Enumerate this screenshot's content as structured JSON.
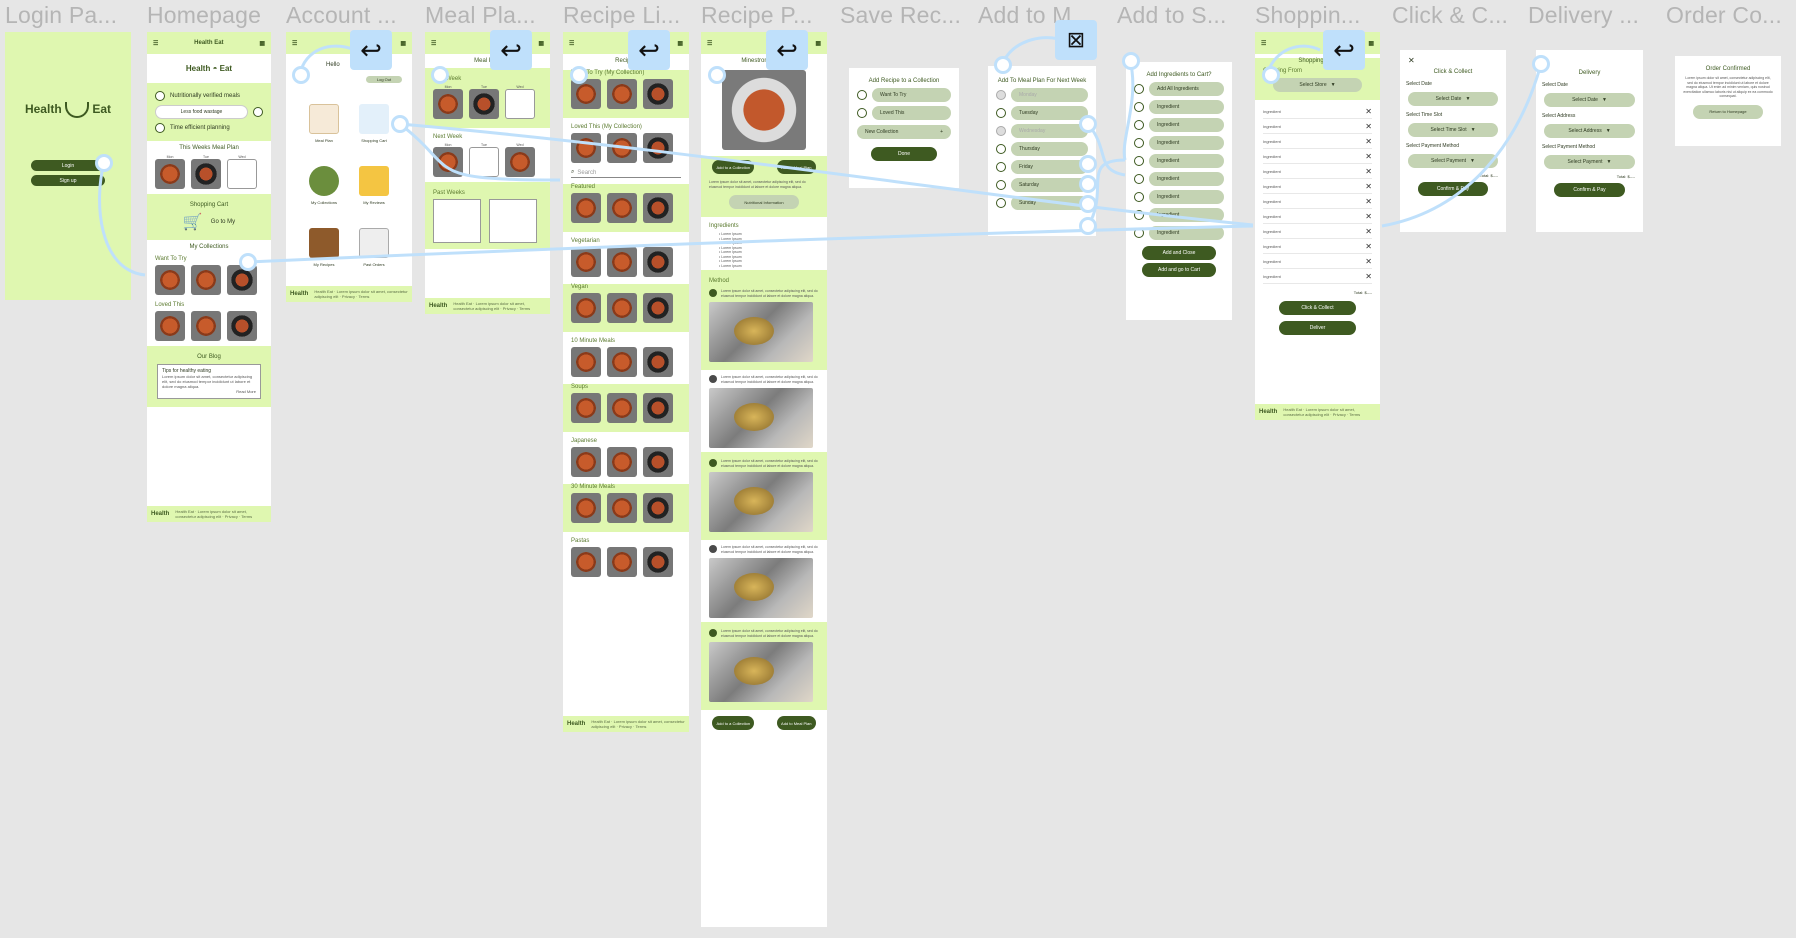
{
  "frame_titles": [
    "Login Pa...",
    "Homepage",
    "Account ...",
    "Meal Pla...",
    "Recipe Li...",
    "Recipe P...",
    "Save Rec...",
    "Add to M...",
    "Add to S...",
    "Shoppin...",
    "Click & C...",
    "Delivery ...",
    "Order Co..."
  ],
  "brand": {
    "name_left": "Health",
    "name_right": "Eat",
    "accent": "#dff7b0",
    "dark": "#3e5a21",
    "pill": "#c4d3b3",
    "flow": "#bfe0fb"
  },
  "login": {
    "login_label": "Login",
    "signup_label": "Sign up"
  },
  "home": {
    "features": [
      "Nutritionally verified meals",
      "Less food wastage",
      "Time efficient planning"
    ],
    "meal_plan_title": "This Weeks Meal Plan",
    "days": [
      "Mon",
      "Tue",
      "Wed"
    ],
    "cart_title": "Shopping Cart",
    "cart_go": "Go to My",
    "collections_title": "My Collections",
    "want_to_try": "Want To Try",
    "loved_this": "Loved This",
    "blog_title": "Our Blog",
    "blog_card_title": "Tips for healthy eating",
    "blog_read_more": "Read More"
  },
  "account": {
    "hello": "Hello",
    "log_out": "Log Out",
    "tiles": [
      "Meal Plan",
      "Shopping Cart",
      "My Collections",
      "My Reviews",
      "My Recipes",
      "Past Orders"
    ]
  },
  "meal_plan": {
    "title": "Meal Plan",
    "this_week": "This Week",
    "next_week": "Next Week",
    "past_weeks": "Past Weeks",
    "days": [
      "Mon",
      "Tue",
      "Wed"
    ]
  },
  "recipe_list": {
    "title": "Recipes",
    "search_placeholder": "Search",
    "sections": [
      "Want To Try (My Collection)",
      "Loved This (My Collection)",
      "Featured",
      "Vegetarian",
      "Vegan",
      "10 Minute Meals",
      "Soups",
      "Japanese",
      "30 Minute Meals",
      "Pastas"
    ]
  },
  "recipe_page": {
    "title": "Minestrone Soup",
    "add_collection": "Add to a Collection",
    "add_meal_plan": "Add to Meal Plan",
    "nutrition": "Nutritional Information",
    "ingredients_title": "Ingredients",
    "ingredient_item": "Lorem Ipsum",
    "method_title": "Method",
    "lorem": "Lorem ipsum dolor sit amet, consectetur adipiscing elit, sed do eiusmod tempor incididunt ut labore et dolore magna aliqua."
  },
  "save_recipe": {
    "title": "Add Recipe to a Collection",
    "options": [
      "Want To Try",
      "Loved This"
    ],
    "new_collection": "New Collection",
    "done": "Done"
  },
  "add_meal_plan": {
    "title": "Add To Meal Plan For Next Week",
    "days": [
      "Monday",
      "Tuesday",
      "Wednesday",
      "Thursday",
      "Friday",
      "Saturday",
      "Sunday"
    ]
  },
  "add_cart": {
    "title": "Add Ingredients to Cart?",
    "all": "Add All Ingredients",
    "item": "Ingredient",
    "add_close": "Add and Close",
    "add_go": "Add and go to Cart"
  },
  "cart": {
    "title": "Shopping Cart",
    "ordering_from": "Ordering From",
    "select_store": "Select Store",
    "item": "Ingredient",
    "total": "Total: $----",
    "click_collect": "Click & Collect",
    "deliver": "Deliver"
  },
  "click_collect": {
    "title": "Click & Collect",
    "select_date_label": "Select Date",
    "select_date": "Select Date",
    "time_label": "Select Time Slot",
    "time": "Select Time Slot",
    "payment_label": "Select Payment Method",
    "payment": "Select Payment",
    "total": "Total: $----",
    "confirm": "Confirm & Pay"
  },
  "delivery": {
    "title": "Delivery",
    "select_date_label": "Select Date",
    "select_date": "Select Date",
    "address_label": "Select Address",
    "address": "Select Address",
    "payment_label": "Select Payment Method",
    "payment": "Select Payment",
    "total": "Total: $----",
    "confirm": "Confirm & Pay"
  },
  "order": {
    "title": "Order Confirmed",
    "body": "Lorem ipsum dolor sit amet, consectetur adipiscing elit, sed do eiusmod tempor incididunt ut labore et dolore magna aliqua. Ut enim ad minim veniam, quis nostrud exercitation ullamco laboris nisi ut aliquip ex ea commodo consequat.",
    "return": "Return to Homepage"
  },
  "footer": {
    "text": "Health Eat · Lorem ipsum dolor sit amet, consectetur adipiscing elit · Privacy · Terms"
  }
}
